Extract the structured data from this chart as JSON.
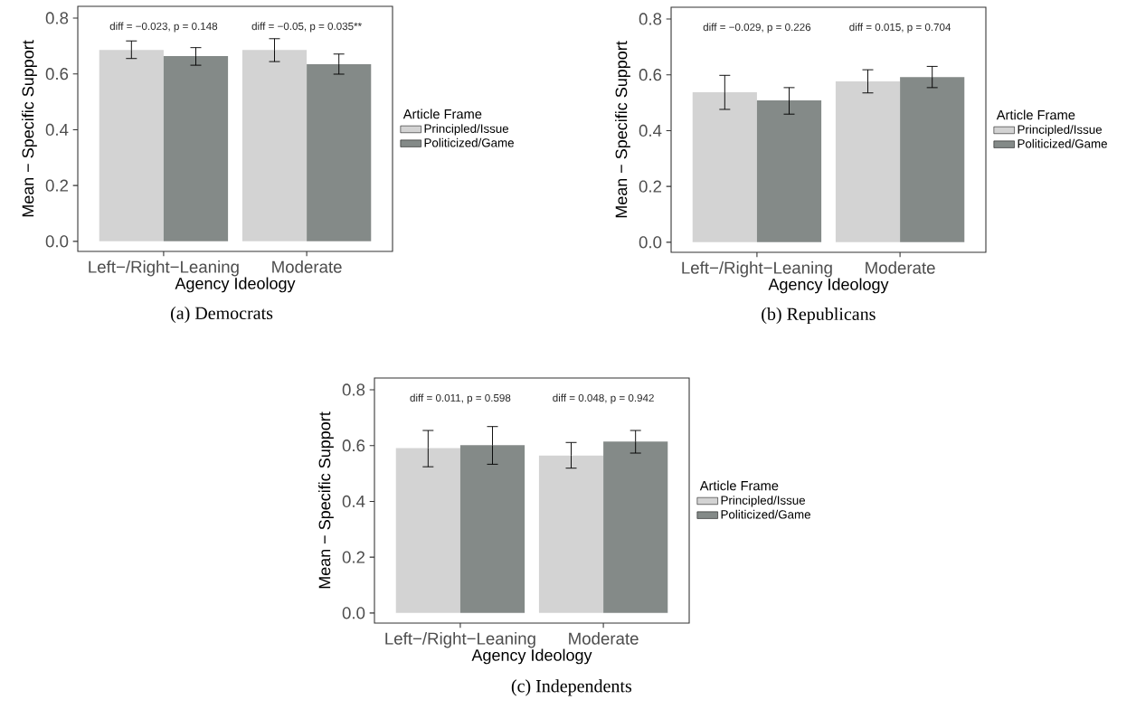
{
  "chart_data": [
    {
      "type": "bar",
      "title": "(a) Democrats",
      "xlabel": "Agency Ideology",
      "ylabel": "Mean − Specific Support",
      "legend_title": "Article Frame",
      "legend": "right",
      "categories": [
        "Left−/Right−Leaning",
        "Moderate"
      ],
      "series": [
        {
          "name": "Principled/Issue",
          "color": "#d3d3d3",
          "values": [
            0.686,
            0.686
          ],
          "errors": [
            [
              0.655,
              0.718
            ],
            [
              0.644,
              0.726
            ]
          ]
        },
        {
          "name": "Politicized/Game",
          "color": "#848a88",
          "values": [
            0.664,
            0.635
          ],
          "errors": [
            [
              0.631,
              0.694
            ],
            [
              0.599,
              0.671
            ]
          ]
        }
      ],
      "annotations": [
        "diff = −0.023, p = 0.148",
        "diff = −0.05, p = 0.035**"
      ],
      "ylim": [
        -0.036,
        0.842
      ],
      "yticks": [
        {
          "value": 0,
          "label": "0.0"
        },
        {
          "value": 0.2,
          "label": "0.2"
        },
        {
          "value": 0.4,
          "label": "0.4"
        },
        {
          "value": 0.6,
          "label": "0.6"
        },
        {
          "value": 0.8,
          "label": "0.8"
        }
      ]
    },
    {
      "type": "bar",
      "title": "(b) Republicans",
      "xlabel": "Agency Ideology",
      "ylabel": "Mean − Specific Support",
      "legend_title": "Article Frame",
      "legend": "right",
      "categories": [
        "Left−/Right−Leaning",
        "Moderate"
      ],
      "series": [
        {
          "name": "Principled/Issue",
          "color": "#d3d3d3",
          "values": [
            0.537,
            0.576
          ],
          "errors": [
            [
              0.476,
              0.598
            ],
            [
              0.535,
              0.618
            ]
          ]
        },
        {
          "name": "Politicized/Game",
          "color": "#848a88",
          "values": [
            0.508,
            0.592
          ],
          "errors": [
            [
              0.459,
              0.554
            ],
            [
              0.554,
              0.63
            ]
          ]
        }
      ],
      "annotations": [
        "diff = −0.029, p = 0.226",
        "diff = 0.015, p = 0.704"
      ],
      "ylim": [
        -0.036,
        0.842
      ],
      "yticks": [
        {
          "value": 0,
          "label": "0.0"
        },
        {
          "value": 0.2,
          "label": "0.2"
        },
        {
          "value": 0.4,
          "label": "0.4"
        },
        {
          "value": 0.6,
          "label": "0.6"
        },
        {
          "value": 0.8,
          "label": "0.8"
        }
      ]
    },
    {
      "type": "bar",
      "title": "(c) Independents",
      "xlabel": "Agency Ideology",
      "ylabel": "Mean − Specific Support",
      "legend_title": "Article Frame",
      "legend": "right",
      "categories": [
        "Left−/Right−Leaning",
        "Moderate"
      ],
      "series": [
        {
          "name": "Principled/Issue",
          "color": "#d3d3d3",
          "values": [
            0.591,
            0.564
          ],
          "errors": [
            [
              0.524,
              0.654
            ],
            [
              0.519,
              0.611
            ]
          ]
        },
        {
          "name": "Politicized/Game",
          "color": "#848a88",
          "values": [
            0.601,
            0.614
          ],
          "errors": [
            [
              0.533,
              0.668
            ],
            [
              0.573,
              0.654
            ]
          ]
        }
      ],
      "annotations": [
        "diff = 0.011, p = 0.598",
        "diff = 0.048, p = 0.942"
      ],
      "ylim": [
        -0.036,
        0.842
      ],
      "yticks": [
        {
          "value": 0,
          "label": "0.0"
        },
        {
          "value": 0.2,
          "label": "0.2"
        },
        {
          "value": 0.4,
          "label": "0.4"
        },
        {
          "value": 0.6,
          "label": "0.6"
        },
        {
          "value": 0.8,
          "label": "0.8"
        }
      ]
    }
  ]
}
